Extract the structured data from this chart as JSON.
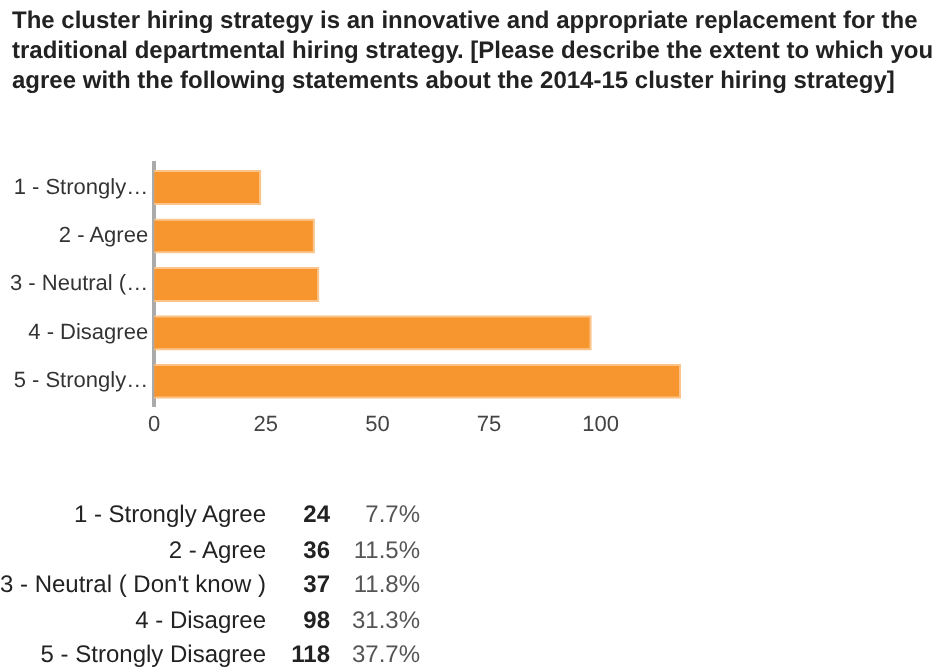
{
  "chart_data": [
    {
      "type": "bar",
      "orientation": "horizontal",
      "title": "The cluster hiring strategy is an innovative and appropriate replacement for the traditional departmental hiring strategy. [Please describe the extent to which you agree with the following statements about the 2014-15 cluster hiring strategy]",
      "categories": [
        "1 - Strongly…",
        "2 - Agree",
        "3 - Neutral (…",
        "4 - Disagree",
        "5 - Strongly…"
      ],
      "values": [
        24,
        36,
        37,
        98,
        118
      ],
      "color": "#f7962f",
      "xlim": [
        0,
        120
      ],
      "xticks": [
        0,
        25,
        50,
        75,
        100
      ],
      "grid": false
    },
    {
      "type": "other",
      "categories": [
        "1 - Strongly Agree",
        "2 - Agree",
        "3 - Neutral ( Don't know )",
        "4 - Disagree",
        "5 - Strongly Disagree"
      ],
      "values": [
        24,
        36,
        37,
        98,
        118
      ],
      "data_labels": true,
      "annotations": [
        "7.7%",
        "11.5%",
        "11.8%",
        "31.3%",
        "37.7%"
      ]
    }
  ]
}
